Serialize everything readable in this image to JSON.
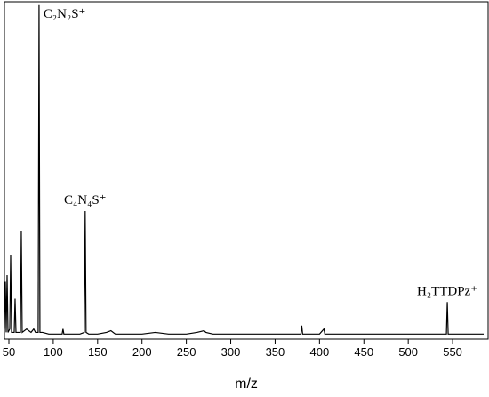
{
  "chart_data": {
    "type": "line",
    "x_label": "m/z",
    "xlim": [
      45,
      590
    ],
    "xticks": [
      50,
      100,
      150,
      200,
      250,
      300,
      350,
      400,
      450,
      500,
      550
    ],
    "ylim": [
      0,
      100
    ],
    "color": "#000000",
    "series": [
      {
        "name": null,
        "color": "#000000",
        "x": [
          45,
          46,
          47,
          48,
          49,
          51,
          52,
          53,
          56,
          57,
          58,
          60,
          63,
          64,
          65,
          70,
          75,
          78,
          80,
          83,
          84,
          85,
          88,
          95,
          100,
          110,
          111,
          112,
          120,
          130,
          135,
          136,
          137,
          140,
          150,
          160,
          165,
          170,
          200,
          215,
          230,
          250,
          262,
          270,
          272,
          280,
          300,
          320,
          350,
          379,
          380,
          381,
          400,
          405,
          406,
          420,
          450,
          500,
          540,
          543,
          544,
          545,
          560,
          585
        ],
        "values": [
          3,
          17,
          2,
          19,
          2,
          3,
          25,
          2,
          2,
          12,
          2,
          2,
          2,
          32,
          2,
          3,
          2,
          3,
          2,
          2,
          99,
          2,
          2,
          1.5,
          1.5,
          1.5,
          3,
          1.5,
          1.5,
          1.5,
          2,
          38,
          2,
          1.5,
          1.5,
          2,
          2.5,
          1.5,
          1.5,
          2,
          1.5,
          1.5,
          2,
          2.5,
          2,
          1.5,
          1.5,
          1.5,
          1.5,
          1.5,
          4,
          1.5,
          1.5,
          3,
          1.5,
          1.5,
          1.5,
          1.5,
          1.5,
          1.5,
          11,
          1.5,
          1.5,
          1.5
        ]
      }
    ],
    "annotations": [
      {
        "text": "C₂N₂S⁺",
        "x": 84
      },
      {
        "text": "C₄N₄S⁺",
        "x": 136
      },
      {
        "text": "H₂TTDPz⁺",
        "x": 544
      }
    ]
  }
}
